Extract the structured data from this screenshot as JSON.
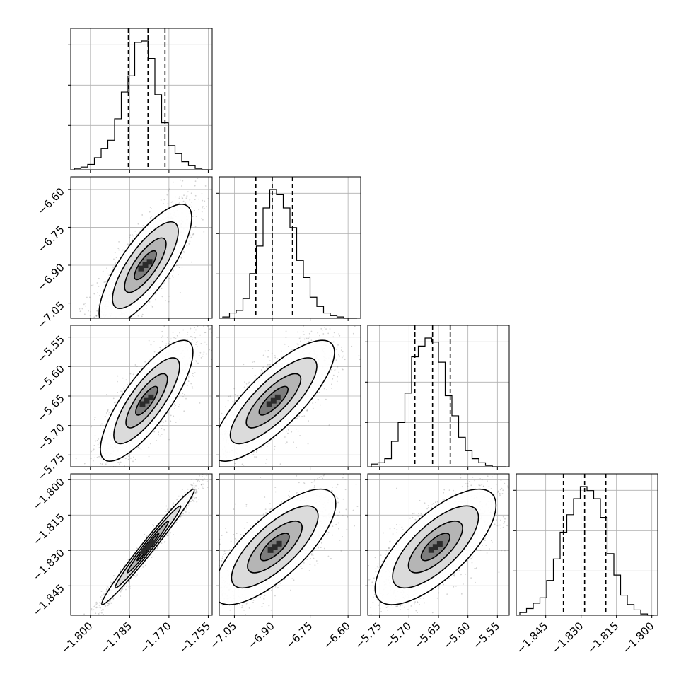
{
  "chart_data": {
    "type": "corner",
    "grid": true,
    "parameters": [
      {
        "range": [
          -1.8075,
          -1.7535
        ],
        "ticks": [
          "−1.800",
          "−1.785",
          "−1.770",
          "−1.755"
        ],
        "tick_values": [
          -1.8,
          -1.785,
          -1.77,
          -1.755
        ],
        "quantiles": [
          -1.7855,
          -1.778,
          -1.7715
        ]
      },
      {
        "range": [
          -7.11,
          -6.55
        ],
        "ticks": [
          "−7.05",
          "−6.90",
          "−6.75",
          "−6.60"
        ],
        "tick_values": [
          -7.05,
          -6.9,
          -6.75,
          -6.6
        ],
        "quantiles": [
          -6.965,
          -6.9,
          -6.82
        ]
      },
      {
        "range": [
          -5.77,
          -5.53
        ],
        "ticks": [
          "−5.75",
          "−5.70",
          "−5.65",
          "−5.60",
          "−5.55"
        ],
        "tick_values": [
          -5.75,
          -5.7,
          -5.65,
          -5.6,
          -5.55
        ],
        "quantiles": [
          -5.69,
          -5.66,
          -5.63
        ]
      },
      {
        "range": [
          -1.8575,
          -1.7975
        ],
        "ticks": [
          "−1.845",
          "−1.830",
          "−1.815",
          "−1.800"
        ],
        "tick_values": [
          -1.845,
          -1.83,
          -1.815,
          -1.8
        ],
        "quantiles": [
          -1.8375,
          -1.8285,
          -1.8195
        ]
      }
    ],
    "histograms": [
      [
        1,
        2,
        4,
        9,
        16,
        22,
        38,
        58,
        70,
        95,
        96,
        83,
        56,
        35,
        18,
        12,
        6,
        3,
        1,
        0
      ],
      [
        1,
        4,
        6,
        15,
        34,
        55,
        84,
        98,
        94,
        84,
        69,
        44,
        31,
        16,
        9,
        4,
        2,
        1,
        0,
        0
      ],
      [
        2,
        3,
        6,
        19,
        33,
        55,
        82,
        90,
        96,
        93,
        78,
        53,
        38,
        22,
        12,
        6,
        3,
        1,
        0,
        0
      ],
      [
        2,
        5,
        9,
        13,
        26,
        42,
        62,
        75,
        87,
        96,
        93,
        87,
        73,
        46,
        30,
        15,
        8,
        4,
        1,
        0
      ]
    ],
    "pairs": [
      {
        "row": 1,
        "col": 0,
        "center": [
          -1.779,
          -6.9
        ],
        "rx": 0.0093,
        "ry": 0.127,
        "corr": 0.78
      },
      {
        "row": 2,
        "col": 0,
        "center": [
          -1.7785,
          -5.658
        ],
        "rx": 0.0093,
        "ry": 0.054,
        "corr": 0.8
      },
      {
        "row": 2,
        "col": 1,
        "center": [
          -6.895,
          -5.658
        ],
        "rx": 0.127,
        "ry": 0.054,
        "corr": 0.8
      },
      {
        "row": 3,
        "col": 0,
        "center": [
          -1.778,
          -1.8285
        ],
        "rx": 0.0093,
        "ry": 0.0129,
        "corr": 0.985
      },
      {
        "row": 3,
        "col": 1,
        "center": [
          -6.89,
          -1.8285
        ],
        "rx": 0.127,
        "ry": 0.0129,
        "corr": 0.75
      },
      {
        "row": 3,
        "col": 2,
        "center": [
          -5.655,
          -1.8285
        ],
        "rx": 0.054,
        "ry": 0.0129,
        "corr": 0.72
      }
    ],
    "colors": {
      "line": "#000000",
      "grid": "#b0b0b0",
      "scatter": "#7f7f7f",
      "dense": "#2b2b2b"
    }
  }
}
